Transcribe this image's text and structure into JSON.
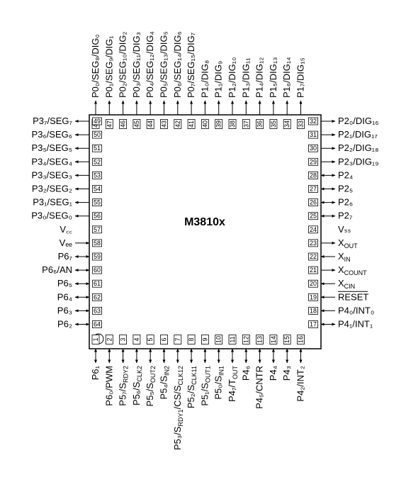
{
  "chip_name": "M3810x",
  "pins": {
    "top": [
      {
        "num": "48",
        "label": "P0₀/SEG₈/DIG₀",
        "dir": "out"
      },
      {
        "num": "47",
        "label": "P0₁/SEG₉/DIG₁",
        "dir": "out"
      },
      {
        "num": "46",
        "label": "P0₂/SEG₁₀/DIG₂",
        "dir": "out"
      },
      {
        "num": "45",
        "label": "P0₃/SEG₁₁/DIG₃",
        "dir": "out"
      },
      {
        "num": "44",
        "label": "P0₄/SEG₁₂/DIG₄",
        "dir": "out"
      },
      {
        "num": "43",
        "label": "P0₅/SEG₁₃/DIG₅",
        "dir": "out"
      },
      {
        "num": "42",
        "label": "P0₆/SEG₁₄/DIG₆",
        "dir": "out"
      },
      {
        "num": "41",
        "label": "P0₇/SEG₁₅/DIG₇",
        "dir": "out"
      },
      {
        "num": "40",
        "label": "P1₀/DIG₈",
        "dir": "out"
      },
      {
        "num": "39",
        "label": "P1₁/DIG₉",
        "dir": "out"
      },
      {
        "num": "38",
        "label": "P1₂/DIG₁₀",
        "dir": "out"
      },
      {
        "num": "37",
        "label": "P1₃/DIG₁₁",
        "dir": "out"
      },
      {
        "num": "36",
        "label": "P1₄/DIG₁₂",
        "dir": "out"
      },
      {
        "num": "35",
        "label": "P1₅/DIG₁₃",
        "dir": "out"
      },
      {
        "num": "34",
        "label": "P1₆/DIG₁₄",
        "dir": "out"
      },
      {
        "num": "33",
        "label": "P1₇/DIG₁₅",
        "dir": "out"
      }
    ],
    "left": [
      {
        "num": "49",
        "label": "P3₇/SEG₇",
        "dir": "out"
      },
      {
        "num": "50",
        "label": "P3₆/SEG₆",
        "dir": "out"
      },
      {
        "num": "51",
        "label": "P3₅/SEG₅",
        "dir": "out"
      },
      {
        "num": "52",
        "label": "P3₄/SEG₄",
        "dir": "out"
      },
      {
        "num": "53",
        "label": "P3₃/SEG₃",
        "dir": "out"
      },
      {
        "num": "54",
        "label": "P3₂/SEG₂",
        "dir": "out"
      },
      {
        "num": "55",
        "label": "P3₁/SEG₁",
        "dir": "out"
      },
      {
        "num": "56",
        "label": "P3₀/SEG₀",
        "dir": "out"
      },
      {
        "num": "57",
        "label": "V꜀꜀",
        "dir": "none"
      },
      {
        "num": "58",
        "label": "Vₑₑ",
        "dir": "in"
      },
      {
        "num": "59",
        "label": "P6₇",
        "dir": "bi"
      },
      {
        "num": "60",
        "label": "P6₆/AN",
        "dir": "bi"
      },
      {
        "num": "61",
        "label": "P6₅",
        "dir": "bi"
      },
      {
        "num": "62",
        "label": "P6₄",
        "dir": "bi"
      },
      {
        "num": "63",
        "label": "P6₃",
        "dir": "bi"
      },
      {
        "num": "64",
        "label": "P6₂",
        "dir": "bi"
      }
    ],
    "right": [
      {
        "num": "32",
        "label": "P2₀/DIG₁₆",
        "dir": "out"
      },
      {
        "num": "31",
        "label": "P2₁/DIG₁₇",
        "dir": "out"
      },
      {
        "num": "30",
        "label": "P2₂/DIG₁₈",
        "dir": "out"
      },
      {
        "num": "29",
        "label": "P2₃/DIG₁₉",
        "dir": "out"
      },
      {
        "num": "28",
        "label": "P2₄",
        "dir": "bi"
      },
      {
        "num": "27",
        "label": "P2₅",
        "dir": "bi"
      },
      {
        "num": "26",
        "label": "P2₆",
        "dir": "bi"
      },
      {
        "num": "25",
        "label": "P2₇",
        "dir": "bi"
      },
      {
        "num": "24",
        "label": "Vₛₛ",
        "dir": "none"
      },
      {
        "num": "23",
        "label": "X_OUT",
        "dir": "out"
      },
      {
        "num": "22",
        "label": "X_IN",
        "dir": "in"
      },
      {
        "num": "21",
        "label": "X_COUNT",
        "dir": "out"
      },
      {
        "num": "20",
        "label": "X_CIN",
        "dir": "in"
      },
      {
        "num": "19",
        "label": "RESET",
        "dir": "in"
      },
      {
        "num": "18",
        "label": "P4₀/INT₀",
        "dir": "in"
      },
      {
        "num": "17",
        "label": "P4₁/INT₁",
        "dir": "bi"
      }
    ],
    "bottom": [
      {
        "num": "1",
        "label": "P6₁",
        "dir": "bi"
      },
      {
        "num": "2",
        "label": "P6₀/PWM",
        "dir": "bi"
      },
      {
        "num": "3",
        "label": "P5₇/S_RDY2",
        "dir": "bi"
      },
      {
        "num": "4",
        "label": "P5₆/S_CLK2",
        "dir": "bi"
      },
      {
        "num": "5",
        "label": "P5₅/S_OUT2",
        "dir": "bi"
      },
      {
        "num": "6",
        "label": "P5₄/S_IN2",
        "dir": "bi"
      },
      {
        "num": "7",
        "label": "P5₃/S_RDY1/CS/S_CLK12",
        "dir": "bi"
      },
      {
        "num": "8",
        "label": "P5₂/S_CLK11",
        "dir": "bi"
      },
      {
        "num": "9",
        "label": "P5₁/S_OUT1",
        "dir": "bi"
      },
      {
        "num": "10",
        "label": "P5₀/S_IN1",
        "dir": "bi"
      },
      {
        "num": "11",
        "label": "P4₇/T_OUT",
        "dir": "bi"
      },
      {
        "num": "12",
        "label": "P4₆",
        "dir": "bi"
      },
      {
        "num": "13",
        "label": "P4₅/CNTR",
        "dir": "bi"
      },
      {
        "num": "14",
        "label": "P4₄",
        "dir": "bi"
      },
      {
        "num": "15",
        "label": "P4₃",
        "dir": "bi"
      },
      {
        "num": "16",
        "label": "P4₂/INT₂",
        "dir": "bi"
      }
    ]
  }
}
